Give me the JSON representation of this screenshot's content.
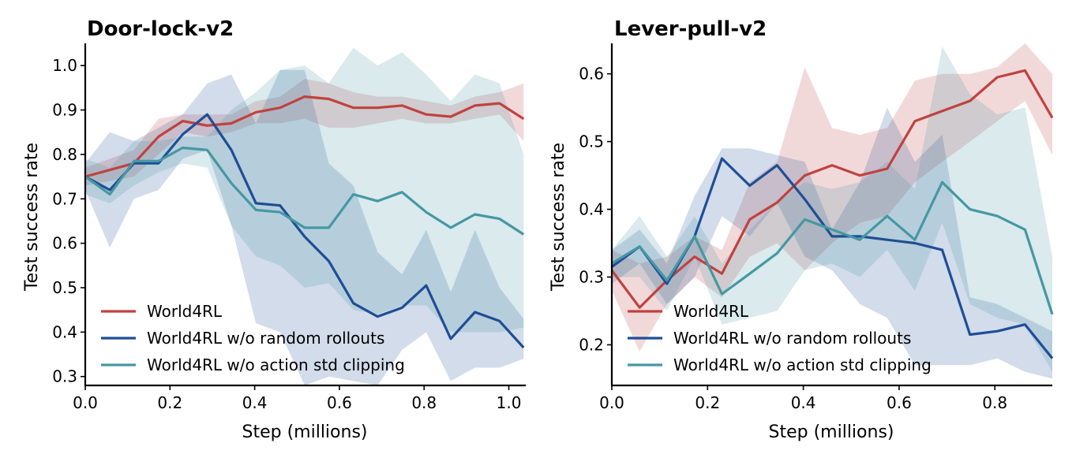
{
  "chart_data": [
    {
      "type": "line",
      "title": "Door-lock-v2",
      "xlabel": "Step (millions)",
      "ylabel": "Test success rate",
      "xlim": [
        0.0,
        1.04
      ],
      "ylim": [
        0.28,
        1.05
      ],
      "xticks": [
        0.0,
        0.2,
        0.4,
        0.6,
        0.8,
        1.0
      ],
      "xtick_labels": [
        "0.0",
        "0.2",
        "0.4",
        "0.6",
        "0.8",
        "1.0"
      ],
      "yticks": [
        0.3,
        0.4,
        0.5,
        0.6,
        0.7,
        0.8,
        0.9,
        1.0
      ],
      "ytick_labels": [
        "0.3",
        "0.4",
        "0.5",
        "0.6",
        "0.7",
        "0.8",
        "0.9",
        "1.0"
      ],
      "grid": false,
      "legend_position": "lower-left",
      "x": [
        0.0,
        0.058,
        0.115,
        0.173,
        0.23,
        0.288,
        0.345,
        0.403,
        0.46,
        0.518,
        0.575,
        0.633,
        0.69,
        0.748,
        0.805,
        0.863,
        0.92,
        0.978,
        1.035
      ],
      "series": [
        {
          "name": "World4RL",
          "color": "#c0423f",
          "values": [
            0.75,
            0.765,
            0.78,
            0.84,
            0.875,
            0.865,
            0.87,
            0.895,
            0.905,
            0.93,
            0.925,
            0.905,
            0.905,
            0.91,
            0.89,
            0.885,
            0.91,
            0.915,
            0.88
          ],
          "lower": [
            0.73,
            0.74,
            0.75,
            0.8,
            0.85,
            0.84,
            0.85,
            0.87,
            0.87,
            0.88,
            0.86,
            0.86,
            0.87,
            0.88,
            0.87,
            0.87,
            0.88,
            0.89,
            0.83
          ],
          "upper": [
            0.77,
            0.79,
            0.81,
            0.88,
            0.89,
            0.89,
            0.89,
            0.92,
            0.93,
            0.97,
            0.96,
            0.94,
            0.93,
            0.93,
            0.92,
            0.91,
            0.93,
            0.94,
            0.96
          ]
        },
        {
          "name": "World4RL w/o random rollouts",
          "color": "#1f4e96",
          "values": [
            0.75,
            0.72,
            0.78,
            0.78,
            0.845,
            0.89,
            0.81,
            0.69,
            0.685,
            0.615,
            0.56,
            0.465,
            0.435,
            0.455,
            0.505,
            0.385,
            0.445,
            0.425,
            0.365
          ],
          "lower": [
            0.72,
            0.59,
            0.7,
            0.72,
            0.79,
            0.81,
            0.64,
            0.42,
            0.4,
            0.28,
            0.3,
            0.29,
            0.28,
            0.36,
            0.4,
            0.29,
            0.32,
            0.32,
            0.34
          ],
          "upper": [
            0.78,
            0.85,
            0.83,
            0.86,
            0.89,
            0.96,
            0.98,
            0.87,
            0.99,
            0.99,
            0.78,
            0.73,
            0.58,
            0.53,
            0.63,
            0.49,
            0.63,
            0.5,
            0.43
          ]
        },
        {
          "name": "World4RL w/o action std clipping",
          "color": "#4598a3",
          "values": [
            0.75,
            0.71,
            0.785,
            0.785,
            0.815,
            0.81,
            0.735,
            0.675,
            0.67,
            0.635,
            0.635,
            0.71,
            0.695,
            0.715,
            0.67,
            0.635,
            0.665,
            0.655,
            0.62
          ],
          "lower": [
            0.71,
            0.69,
            0.73,
            0.76,
            0.78,
            0.77,
            0.64,
            0.57,
            0.55,
            0.5,
            0.51,
            0.45,
            0.44,
            0.46,
            0.46,
            0.4,
            0.4,
            0.4,
            0.41
          ],
          "upper": [
            0.79,
            0.77,
            0.83,
            0.83,
            0.84,
            0.84,
            0.9,
            0.94,
            0.99,
            1.0,
            0.96,
            1.04,
            1.0,
            1.03,
            0.98,
            0.92,
            0.98,
            0.96,
            0.8
          ]
        }
      ]
    },
    {
      "type": "line",
      "title": "Lever-pull-v2",
      "xlabel": "Step (millions)",
      "ylabel": "Test success rate",
      "xlim": [
        0.0,
        0.92
      ],
      "ylim": [
        0.14,
        0.645
      ],
      "xticks": [
        0.0,
        0.2,
        0.4,
        0.6,
        0.8
      ],
      "xtick_labels": [
        "0.0",
        "0.2",
        "0.4",
        "0.6",
        "0.8"
      ],
      "yticks": [
        0.2,
        0.3,
        0.4,
        0.5,
        0.6
      ],
      "ytick_labels": [
        "0.2",
        "0.3",
        "0.4",
        "0.5",
        "0.6"
      ],
      "grid": false,
      "legend_position": "lower-left",
      "x": [
        0.0,
        0.058,
        0.115,
        0.173,
        0.23,
        0.288,
        0.345,
        0.403,
        0.46,
        0.518,
        0.575,
        0.633,
        0.69,
        0.748,
        0.805,
        0.863,
        0.92
      ],
      "series": [
        {
          "name": "World4RL",
          "color": "#c0423f",
          "values": [
            0.31,
            0.255,
            0.295,
            0.33,
            0.305,
            0.385,
            0.41,
            0.45,
            0.465,
            0.45,
            0.46,
            0.53,
            0.545,
            0.56,
            0.595,
            0.605,
            0.535
          ],
          "lower": [
            0.28,
            0.19,
            0.26,
            0.3,
            0.27,
            0.33,
            0.35,
            0.31,
            0.35,
            0.38,
            0.39,
            0.44,
            0.47,
            0.5,
            0.53,
            0.56,
            0.48
          ],
          "upper": [
            0.34,
            0.32,
            0.33,
            0.36,
            0.34,
            0.44,
            0.47,
            0.61,
            0.52,
            0.51,
            0.52,
            0.59,
            0.6,
            0.6,
            0.61,
            0.645,
            0.6
          ]
        },
        {
          "name": "World4RL w/o random rollouts",
          "color": "#1f4e96",
          "values": [
            0.315,
            0.345,
            0.29,
            0.36,
            0.475,
            0.435,
            0.465,
            0.415,
            0.36,
            0.36,
            0.355,
            0.35,
            0.34,
            0.215,
            0.22,
            0.23,
            0.18
          ],
          "lower": [
            0.29,
            0.32,
            0.26,
            0.3,
            0.39,
            0.36,
            0.41,
            0.33,
            0.31,
            0.26,
            0.24,
            0.17,
            0.17,
            0.17,
            0.18,
            0.16,
            0.15
          ],
          "upper": [
            0.34,
            0.37,
            0.32,
            0.42,
            0.49,
            0.49,
            0.48,
            0.47,
            0.37,
            0.44,
            0.55,
            0.47,
            0.51,
            0.27,
            0.26,
            0.24,
            0.22
          ]
        },
        {
          "name": "World4RL w/o action std clipping",
          "color": "#4598a3",
          "values": [
            0.32,
            0.345,
            0.295,
            0.36,
            0.275,
            0.305,
            0.335,
            0.385,
            0.37,
            0.355,
            0.39,
            0.355,
            0.44,
            0.4,
            0.39,
            0.37,
            0.245
          ],
          "lower": [
            0.3,
            0.3,
            0.25,
            0.33,
            0.23,
            0.24,
            0.25,
            0.31,
            0.32,
            0.3,
            0.34,
            0.28,
            0.38,
            0.26,
            0.24,
            0.23,
            0.16
          ],
          "upper": [
            0.34,
            0.39,
            0.33,
            0.39,
            0.32,
            0.37,
            0.41,
            0.44,
            0.43,
            0.44,
            0.47,
            0.43,
            0.64,
            0.57,
            0.54,
            0.55,
            0.33
          ]
        }
      ]
    }
  ]
}
